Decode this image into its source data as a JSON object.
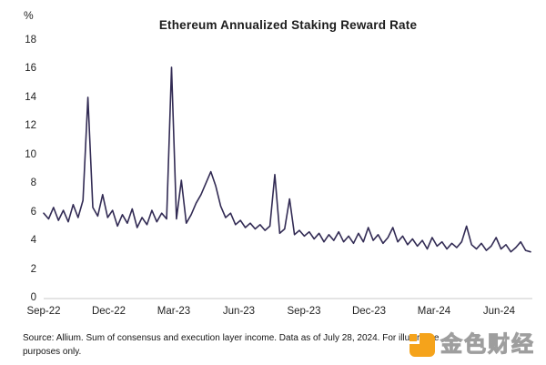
{
  "title": "Ethereum Annualized Staking Reward Rate",
  "y_axis": {
    "unit_label": "%",
    "ticks": [
      18,
      16,
      14,
      12,
      10,
      8,
      6,
      4,
      2,
      0
    ]
  },
  "x_axis": {
    "tick_labels": [
      "Sep-22",
      "Dec-22",
      "Mar-23",
      "Jun-23",
      "Sep-23",
      "Dec-23",
      "Mar-24",
      "Jun-24"
    ]
  },
  "footnote": {
    "line1": "Source: Allium. Sum of consensus and execution layer income. Data as of July 28, 2024. For illustrative",
    "line2": "purposes only."
  },
  "watermark": {
    "name": "金色财经"
  },
  "colors": {
    "line": "#322b54",
    "axis_line": "#e4e4e4",
    "text": "#1a1a1a",
    "watermark_orange": "#f5a31b",
    "watermark_gray": "#9e9e9e"
  },
  "chart_data": {
    "type": "line",
    "title": "Ethereum Annualized Staking Reward Rate",
    "xlabel": "",
    "ylabel": "%",
    "ylim": [
      0,
      18
    ],
    "grid": false,
    "legend": false,
    "x_start": "Sep-2022",
    "x_end": "Jul-2024",
    "sampling": "weekly (approx.)",
    "x_tick_labels": [
      "Sep-22",
      "Dec-22",
      "Mar-23",
      "Jun-23",
      "Sep-23",
      "Dec-23",
      "Mar-24",
      "Jun-24"
    ],
    "notable_points": [
      {
        "label": "spike Nov-22",
        "value": 14.0
      },
      {
        "label": "spike early Mar-23",
        "value": 16.1
      },
      {
        "label": "local peak May-23",
        "value": 8.8
      },
      {
        "label": "spike late Jul-23",
        "value": 8.6
      },
      {
        "label": "end Jul-24",
        "value": 3.2
      }
    ],
    "values": [
      5.9,
      5.5,
      6.3,
      5.4,
      6.1,
      5.3,
      6.5,
      5.6,
      6.8,
      14.0,
      6.3,
      5.7,
      7.2,
      5.6,
      6.1,
      5.0,
      5.8,
      5.2,
      6.2,
      4.9,
      5.6,
      5.1,
      6.1,
      5.3,
      5.9,
      5.5,
      16.1,
      5.5,
      8.2,
      5.2,
      5.8,
      6.6,
      7.2,
      8.0,
      8.8,
      7.8,
      6.4,
      5.6,
      5.9,
      5.1,
      5.4,
      4.9,
      5.2,
      4.8,
      5.1,
      4.7,
      5.0,
      8.6,
      4.5,
      4.8,
      6.9,
      4.4,
      4.7,
      4.3,
      4.6,
      4.1,
      4.5,
      3.9,
      4.4,
      4.0,
      4.6,
      3.9,
      4.3,
      3.8,
      4.5,
      3.9,
      4.9,
      4.0,
      4.4,
      3.8,
      4.2,
      4.9,
      3.9,
      4.3,
      3.7,
      4.1,
      3.6,
      4.0,
      3.4,
      4.2,
      3.6,
      3.9,
      3.4,
      3.8,
      3.5,
      3.9,
      5.0,
      3.7,
      3.4,
      3.8,
      3.3,
      3.6,
      4.2,
      3.4,
      3.7,
      3.2,
      3.5,
      3.9,
      3.3,
      3.2
    ]
  }
}
